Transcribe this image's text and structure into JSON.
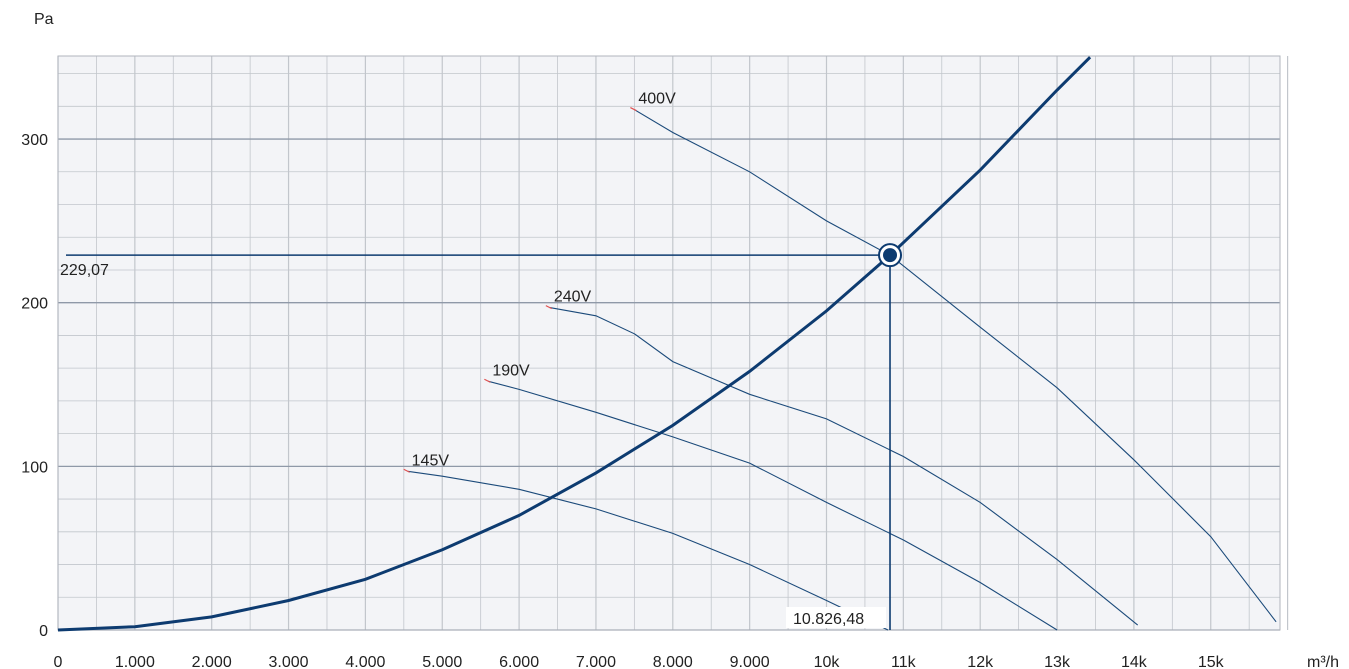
{
  "chart_data": {
    "type": "line",
    "xlabel": "m³/h",
    "ylabel": "Pa",
    "xlim": [
      0,
      16000
    ],
    "ylim": [
      0,
      350
    ],
    "grid": true,
    "x_ticks": [
      {
        "v": 0,
        "label": "0"
      },
      {
        "v": 1000,
        "label": "1.000"
      },
      {
        "v": 2000,
        "label": "2.000"
      },
      {
        "v": 3000,
        "label": "3.000"
      },
      {
        "v": 4000,
        "label": "4.000"
      },
      {
        "v": 5000,
        "label": "5.000"
      },
      {
        "v": 6000,
        "label": "6.000"
      },
      {
        "v": 7000,
        "label": "7.000"
      },
      {
        "v": 8000,
        "label": "8.000"
      },
      {
        "v": 9000,
        "label": "9.000"
      },
      {
        "v": 10000,
        "label": "10k"
      },
      {
        "v": 11000,
        "label": "11k"
      },
      {
        "v": 12000,
        "label": "12k"
      },
      {
        "v": 13000,
        "label": "13k"
      },
      {
        "v": 14000,
        "label": "14k"
      },
      {
        "v": 15000,
        "label": "15k"
      }
    ],
    "y_ticks": [
      {
        "v": 0,
        "label": "0"
      },
      {
        "v": 100,
        "label": "100"
      },
      {
        "v": 200,
        "label": "200"
      },
      {
        "v": 300,
        "label": "300"
      }
    ],
    "series": [
      {
        "name": "400V",
        "x": [
          7500,
          8000,
          9000,
          10000,
          10826,
          12000,
          13000,
          14000,
          15000,
          15850
        ],
        "y": [
          318,
          304,
          280,
          250,
          229,
          185,
          148,
          104,
          57,
          5
        ]
      },
      {
        "name": "240V",
        "x": [
          6400,
          7000,
          7500,
          8000,
          9000,
          10000,
          11000,
          12000,
          13000,
          14050
        ],
        "y": [
          197,
          192,
          181,
          164,
          144,
          129,
          106,
          78,
          43,
          3
        ]
      },
      {
        "name": "190V",
        "x": [
          5600,
          6000,
          7000,
          8000,
          9000,
          10000,
          11000,
          12000,
          13000
        ],
        "y": [
          152,
          147,
          133,
          118,
          102,
          78,
          55,
          29,
          0
        ]
      },
      {
        "name": "145V",
        "x": [
          4550,
          5000,
          6000,
          7000,
          8000,
          9000,
          10000,
          10800
        ],
        "y": [
          97,
          94,
          86,
          74,
          59,
          40,
          18,
          0
        ]
      }
    ],
    "system_curve": {
      "x": [
        0,
        1000,
        2000,
        3000,
        4000,
        5000,
        6000,
        7000,
        8000,
        9000,
        10000,
        10826,
        12000,
        13000,
        13430
      ],
      "y": [
        0,
        2,
        8,
        18,
        31,
        49,
        70,
        96,
        125,
        158,
        195,
        229,
        281,
        330,
        350
      ]
    },
    "operating_point": {
      "x": 10826.48,
      "y": 229.07,
      "x_label": "10.826,48",
      "y_label": "229,07"
    },
    "colors": {
      "curve": "#1b4a7a",
      "system_curve": "#0d3b70",
      "grid": "#c2c6cc",
      "plot_bg": "#f3f4f7",
      "label_tick": "#e05050"
    }
  }
}
